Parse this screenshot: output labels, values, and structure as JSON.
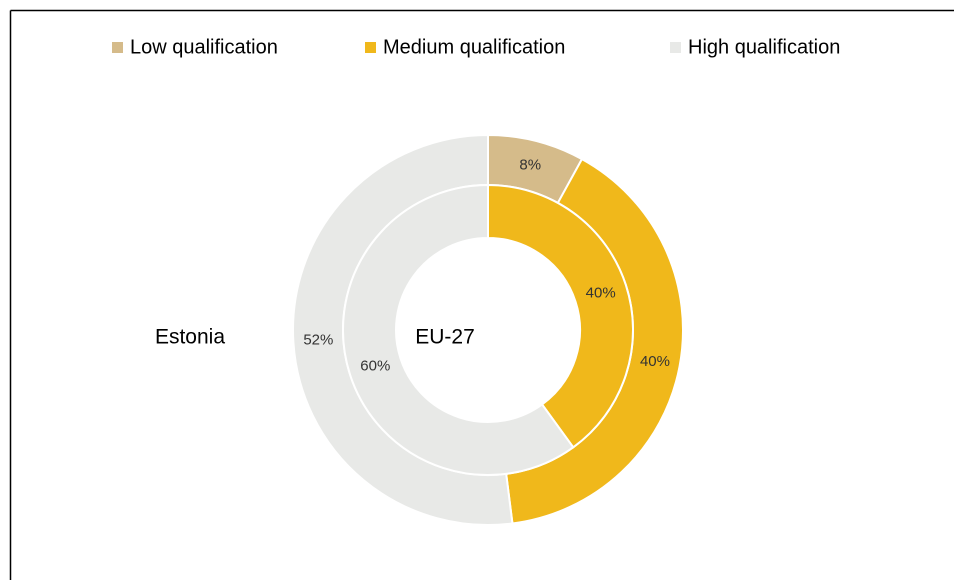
{
  "chart_data": {
    "type": "doughnut",
    "categories": [
      "Low qualification",
      "Medium qualification",
      "High qualification"
    ],
    "colors": [
      "#d5bb8a",
      "#f0b81b",
      "#e8e9e7"
    ],
    "series": [
      {
        "name": "Estonia",
        "values": [
          8,
          40,
          52
        ],
        "value_labels": [
          "8%",
          "40%",
          "52%"
        ]
      },
      {
        "name": "EU-27",
        "values": [
          0,
          40,
          60
        ],
        "value_labels": [
          "0%",
          "40%",
          "60%"
        ]
      }
    ],
    "legend": "top"
  }
}
